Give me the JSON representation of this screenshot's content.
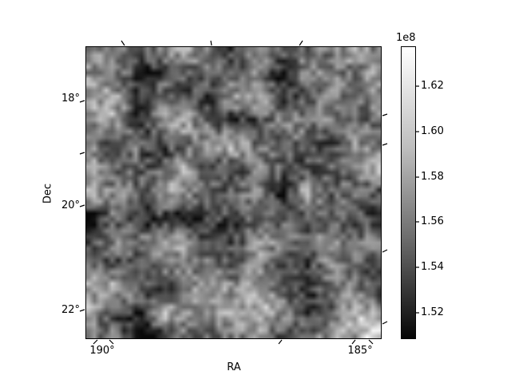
{
  "chart_data": {
    "type": "heatmap",
    "title": "",
    "xlabel": "RA",
    "ylabel": "Dec",
    "x_tick_labels": [
      "190°",
      "185°"
    ],
    "y_tick_labels": [
      "18°",
      "20°",
      "22°"
    ],
    "x_axis_range_deg": [
      190.3,
      184.7
    ],
    "y_axis_range_deg": [
      17.1,
      22.6
    ],
    "grid": "off",
    "legend": "none",
    "colorbar": {
      "position": "right",
      "offset_label": "1e8",
      "tick_labels": [
        "1.62",
        "1.60",
        "1.58",
        "1.56",
        "1.54",
        "1.52"
      ],
      "tick_values_e8": [
        1.62,
        1.6,
        1.58,
        1.56,
        1.54,
        1.52
      ],
      "vmin": 150800000,
      "vmax": 163800000,
      "cmap": "gray"
    },
    "heatmap": {
      "rows": 50,
      "cols": 50,
      "seed": 11,
      "coarse": 13,
      "base": 0.47,
      "contrast": 0.62,
      "coarse_weight": 0.6,
      "dark_row_fracs": [
        0.595
      ],
      "dark_col_fracs": [
        0.2,
        0.665
      ],
      "bright_spot_row_col_frac": [
        0.96,
        0.93
      ]
    }
  }
}
